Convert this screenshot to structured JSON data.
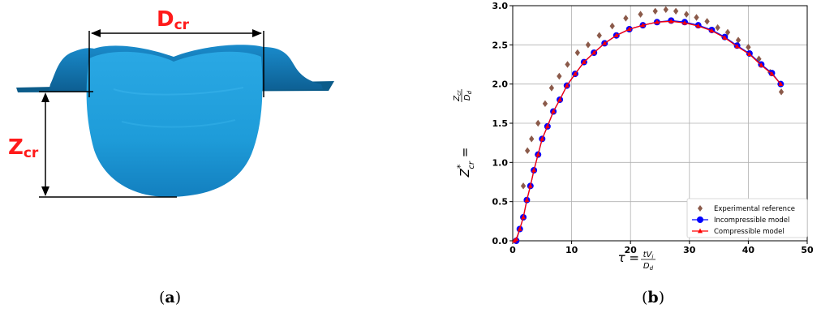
{
  "panel_a": {
    "dcr_label_main": "D",
    "dcr_label_sub": "cr",
    "zcr_label_main": "Z",
    "zcr_label_sub": "cr",
    "label_color": "#ff1a1a",
    "shape_color": "#1fa6df"
  },
  "captions": {
    "a_open": "(",
    "a_letter": "a",
    "a_close": ")",
    "b_open": "(",
    "b_letter": "b",
    "b_close": ")"
  },
  "chart_data": {
    "type": "scatter",
    "title": "",
    "xlabel_main": "τ = ",
    "xlabel_num": "tV",
    "xlabel_num_sub": "i",
    "xlabel_den": "D",
    "xlabel_den_sub": "d",
    "ylabel_main": "Z",
    "ylabel_sup": "*",
    "ylabel_sub": "cr",
    "ylabel_eq": " = ",
    "ylabel_num": "Z",
    "ylabel_num_sub": "cr",
    "ylabel_den": "D",
    "ylabel_den_sub": "d",
    "xlim": [
      0,
      50
    ],
    "ylim": [
      0,
      3.0
    ],
    "xticks": [
      0,
      10,
      20,
      30,
      40,
      50
    ],
    "yticks": [
      0.0,
      0.5,
      1.0,
      1.5,
      2.0,
      2.5,
      3.0
    ],
    "ytick_labels": [
      "0.0",
      "0.5",
      "1.0",
      "1.5",
      "2.0",
      "2.5",
      "3.0"
    ],
    "grid": true,
    "legend_position": "lower-right",
    "series": [
      {
        "name": "Experimental reference",
        "marker": "diamond",
        "color": "#8b5a4a",
        "x": [
          1.8,
          2.5,
          3.2,
          4.3,
          5.5,
          6.6,
          7.9,
          9.3,
          11.0,
          12.8,
          14.7,
          16.9,
          19.2,
          21.7,
          24.2,
          26.0,
          27.7,
          29.5,
          31.2,
          33.0,
          34.8,
          36.5,
          38.3,
          40.0,
          41.8,
          43.7,
          45.6
        ],
        "y": [
          0.7,
          1.15,
          1.3,
          1.5,
          1.75,
          1.95,
          2.1,
          2.25,
          2.4,
          2.5,
          2.62,
          2.74,
          2.84,
          2.89,
          2.93,
          2.95,
          2.93,
          2.89,
          2.85,
          2.8,
          2.72,
          2.66,
          2.56,
          2.47,
          2.32,
          2.15,
          1.9
        ]
      },
      {
        "name": "Incompressible model",
        "marker": "circle",
        "color": "#0000ff",
        "x": [
          0.6,
          1.2,
          1.8,
          2.4,
          3.0,
          3.6,
          4.3,
          5.0,
          5.9,
          6.9,
          8.0,
          9.2,
          10.6,
          12.1,
          13.8,
          15.6,
          17.6,
          19.8,
          22.1,
          24.5,
          26.9,
          29.2,
          31.5,
          33.8,
          36.0,
          38.1,
          40.2,
          42.2,
          44.0,
          45.5
        ],
        "y": [
          0.0,
          0.15,
          0.3,
          0.52,
          0.7,
          0.9,
          1.1,
          1.3,
          1.46,
          1.65,
          1.8,
          1.98,
          2.13,
          2.28,
          2.4,
          2.52,
          2.62,
          2.7,
          2.75,
          2.79,
          2.81,
          2.79,
          2.75,
          2.69,
          2.6,
          2.49,
          2.39,
          2.25,
          2.14,
          2.0
        ]
      },
      {
        "name": "Compressible model",
        "marker": "triangle",
        "color": "#ff0000",
        "x": [
          0.3,
          0.6,
          1.2,
          1.8,
          2.4,
          3.0,
          3.6,
          4.3,
          5.0,
          5.9,
          6.9,
          8.0,
          9.2,
          10.6,
          12.1,
          13.8,
          15.6,
          17.6,
          19.8,
          22.1,
          24.5,
          26.9,
          29.2,
          31.5,
          33.8,
          36.0,
          38.1,
          40.2,
          42.2,
          44.0,
          45.5
        ],
        "y": [
          0.0,
          0.02,
          0.15,
          0.3,
          0.52,
          0.7,
          0.9,
          1.1,
          1.3,
          1.46,
          1.65,
          1.8,
          1.98,
          2.13,
          2.28,
          2.4,
          2.52,
          2.62,
          2.7,
          2.75,
          2.79,
          2.8,
          2.78,
          2.74,
          2.68,
          2.59,
          2.48,
          2.38,
          2.24,
          2.13,
          2.0
        ]
      }
    ]
  }
}
